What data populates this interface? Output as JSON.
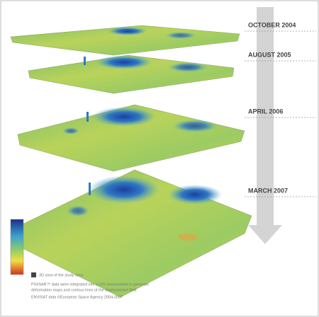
{
  "layers": [
    {
      "label": "OCTOBER 2004"
    },
    {
      "label": "AUGUST 2005"
    },
    {
      "label": "APRIL 2006"
    },
    {
      "label": "MARCH 2007"
    }
  ],
  "legend": {
    "label": "3D view of the study area"
  },
  "caption": {
    "lines": [
      "PSI/SAR™ data were integrated into a GIS environment to generate",
      "deformation maps and contour lines of the displacement field.",
      "ENVISAT data ©European Space Agency 2004-2007"
    ]
  }
}
